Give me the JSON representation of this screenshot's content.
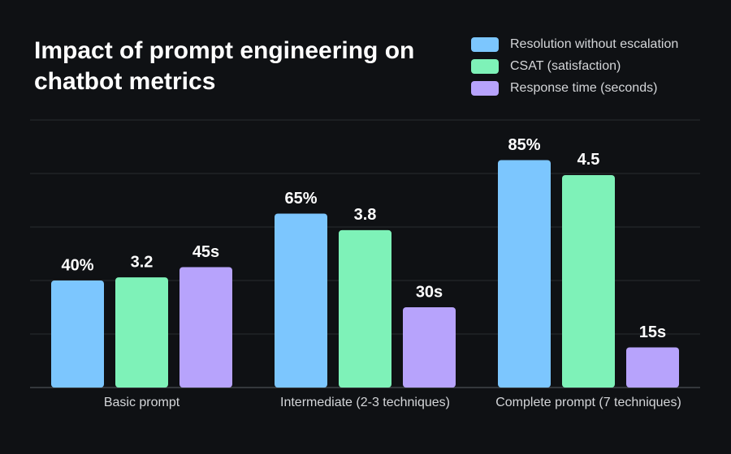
{
  "chart_data": {
    "type": "bar",
    "title": "Impact of prompt engineering on chatbot metrics",
    "categories": [
      "Basic prompt",
      "Intermediate (2-3 techniques)",
      "Complete prompt (7 techniques)"
    ],
    "series": [
      {
        "name": "Resolution without escalation",
        "color": "#7cc6fe",
        "values": [
          40,
          65,
          85
        ],
        "value_labels": [
          "40%",
          "65%",
          "85%"
        ]
      },
      {
        "name": "CSAT (satisfaction)",
        "color": "#7ef2b8",
        "values": [
          3.2,
          3.8,
          4.5
        ],
        "axis": "y2"
      },
      {
        "name": "Response time (seconds)",
        "color": "#b7a3fc",
        "values": [
          45,
          30,
          15
        ],
        "value_labels": [
          "45s",
          "30s",
          "15s"
        ]
      }
    ],
    "ylim": [
      0,
      100
    ],
    "y2lim": [
      1.8,
      5.2
    ],
    "grid": true,
    "legend": "top-right"
  }
}
